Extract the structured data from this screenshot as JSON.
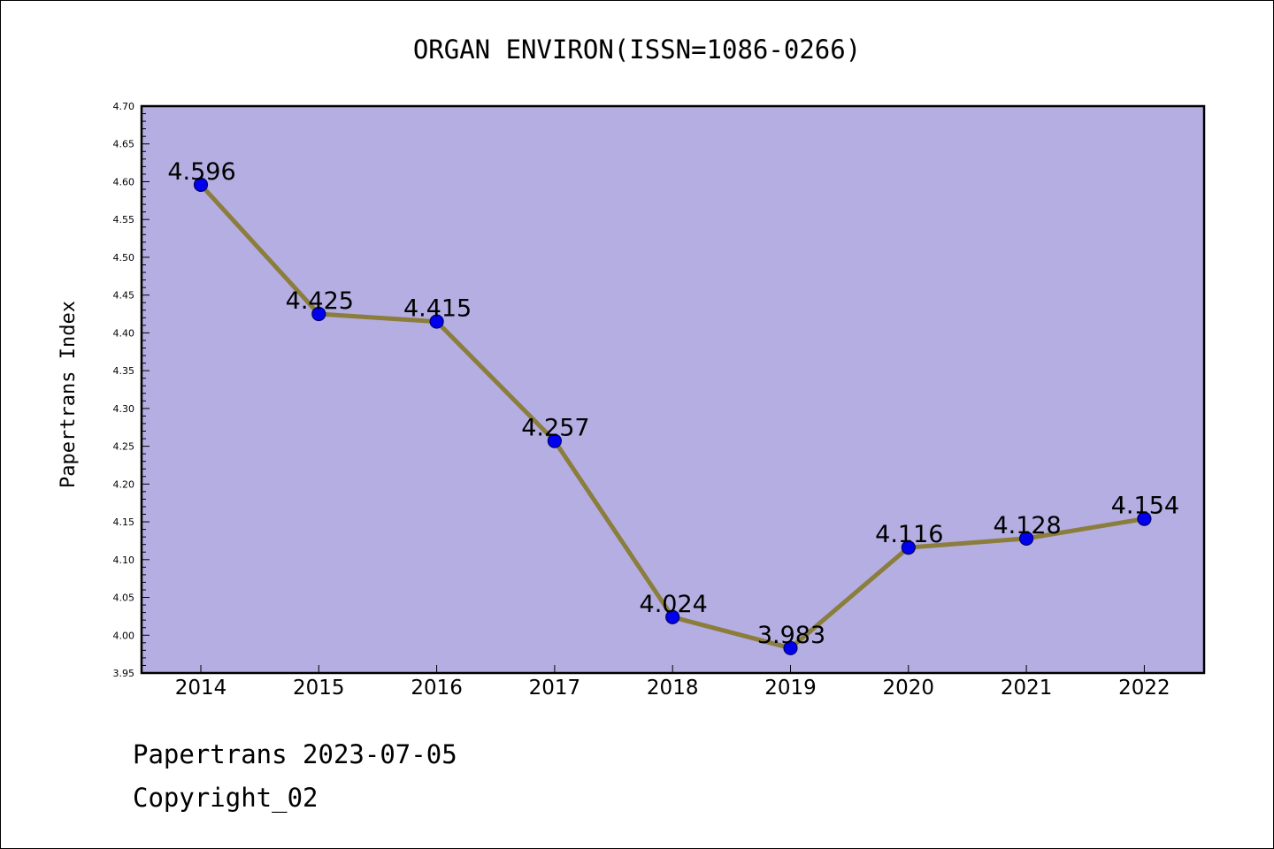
{
  "chart_data": {
    "type": "line",
    "title": "ORGAN ENVIRON(ISSN=1086-0266)",
    "xlabel": "",
    "ylabel": "Papertrans Index",
    "categories": [
      "2014",
      "2015",
      "2016",
      "2017",
      "2018",
      "2019",
      "2020",
      "2021",
      "2022"
    ],
    "series": [
      {
        "values": [
          4.596,
          4.425,
          4.415,
          4.257,
          4.024,
          3.983,
          4.116,
          4.128,
          4.154
        ],
        "data_labels": [
          "4.596",
          "4.425",
          "4.415",
          "4.257",
          "4.024",
          "3.983",
          "4.116",
          "4.128",
          "4.154"
        ]
      }
    ],
    "ylim": [
      3.95,
      4.7
    ],
    "yticks": [
      "3.95",
      "4.00",
      "4.05",
      "4.10",
      "4.15",
      "4.20",
      "4.25",
      "4.30",
      "4.35",
      "4.40",
      "4.45",
      "4.50",
      "4.55",
      "4.60",
      "4.65",
      "4.70"
    ],
    "grid": false,
    "legend": "none",
    "colors": {
      "plot_background": "#b4aee2",
      "line": "#8b7d3c",
      "marker": "#0000ee"
    }
  },
  "footer": {
    "date_line": "Papertrans 2023-07-05",
    "copyright": "Copyright_02"
  }
}
